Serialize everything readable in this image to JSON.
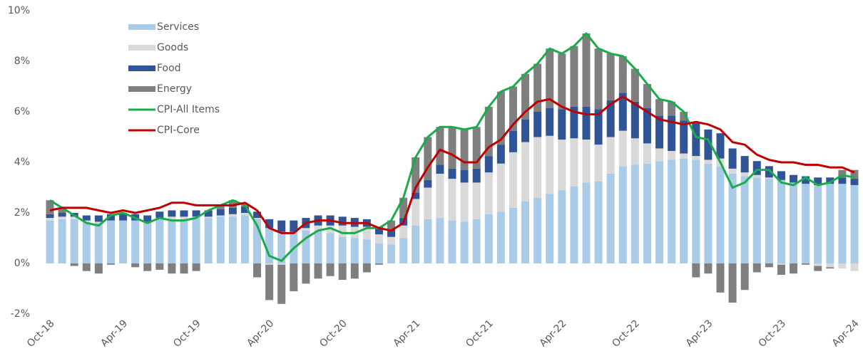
{
  "chart_data": {
    "type": "bar",
    "categories": [
      "Oct-18",
      null,
      null,
      null,
      null,
      null,
      "Apr-19",
      null,
      null,
      null,
      null,
      null,
      "Oct-19",
      null,
      null,
      null,
      null,
      null,
      "Apr-20",
      null,
      null,
      null,
      null,
      null,
      "Oct-20",
      null,
      null,
      null,
      null,
      null,
      "Apr-21",
      null,
      null,
      null,
      null,
      null,
      "Oct-21",
      null,
      null,
      null,
      null,
      null,
      "Apr-22",
      null,
      null,
      null,
      null,
      null,
      "Oct-22",
      null,
      null,
      null,
      null,
      null,
      "Apr-23",
      null,
      null,
      null,
      null,
      null,
      "Oct-23",
      null,
      null,
      null,
      null,
      null,
      "Apr-24"
    ],
    "series": [
      {
        "name": "Services",
        "type": "bar",
        "color": "#a9cbe8",
        "values": [
          1.7,
          1.75,
          1.75,
          1.65,
          1.6,
          1.7,
          1.7,
          1.7,
          1.65,
          1.75,
          1.75,
          1.75,
          1.8,
          1.8,
          1.85,
          1.85,
          1.9,
          1.75,
          1.4,
          1.25,
          1.25,
          1.3,
          1.3,
          1.2,
          1.05,
          1.0,
          0.95,
          0.8,
          0.75,
          1.0,
          1.5,
          1.75,
          1.8,
          1.7,
          1.65,
          1.75,
          1.95,
          2.05,
          2.2,
          2.45,
          2.6,
          2.75,
          2.9,
          3.05,
          3.2,
          3.25,
          3.55,
          3.85,
          3.9,
          3.95,
          4.05,
          4.1,
          4.15,
          4.1,
          3.95,
          3.85,
          3.55,
          3.45,
          3.4,
          3.35,
          3.3,
          3.2,
          3.15,
          3.1,
          3.15,
          3.15,
          3.1
        ]
      },
      {
        "name": "Goods",
        "type": "bar",
        "color": "#d9d9d9",
        "values": [
          0.1,
          0.1,
          0.1,
          0.05,
          0.05,
          0.0,
          0.0,
          0.0,
          0.0,
          0.05,
          0.1,
          0.1,
          0.05,
          0.05,
          0.05,
          0.1,
          0.1,
          0.05,
          -0.05,
          -0.05,
          0.0,
          0.1,
          0.2,
          0.3,
          0.45,
          0.45,
          0.5,
          0.35,
          0.3,
          0.5,
          1.05,
          1.25,
          1.75,
          1.65,
          1.55,
          1.45,
          1.65,
          1.9,
          2.2,
          2.35,
          2.4,
          2.3,
          2.0,
          1.9,
          1.7,
          1.45,
          1.45,
          1.4,
          1.05,
          0.8,
          0.5,
          0.35,
          0.2,
          0.15,
          0.15,
          0.3,
          0.2,
          0.15,
          0.1,
          0.05,
          -0.05,
          0.0,
          0.0,
          -0.1,
          -0.15,
          -0.2,
          -0.3
        ]
      },
      {
        "name": "Food",
        "type": "bar",
        "color": "#2f5597",
        "values": [
          0.15,
          0.15,
          0.15,
          0.2,
          0.25,
          0.25,
          0.25,
          0.25,
          0.25,
          0.25,
          0.25,
          0.25,
          0.25,
          0.25,
          0.25,
          0.25,
          0.25,
          0.25,
          0.35,
          0.45,
          0.45,
          0.4,
          0.4,
          0.4,
          0.35,
          0.35,
          0.3,
          0.3,
          0.3,
          0.3,
          0.25,
          0.3,
          0.35,
          0.4,
          0.5,
          0.55,
          0.65,
          0.75,
          0.85,
          0.9,
          1.0,
          1.1,
          1.2,
          1.25,
          1.3,
          1.4,
          1.45,
          1.5,
          1.45,
          1.4,
          1.3,
          1.4,
          1.3,
          1.3,
          1.2,
          1.0,
          0.8,
          0.65,
          0.55,
          0.45,
          0.35,
          0.3,
          0.3,
          0.3,
          0.25,
          0.25,
          0.25
        ]
      },
      {
        "name": "Energy",
        "type": "bar",
        "color": "#7f7f7f",
        "values": [
          0.55,
          0.2,
          -0.1,
          -0.3,
          -0.4,
          -0.05,
          0.05,
          -0.15,
          -0.3,
          -0.25,
          -0.4,
          -0.4,
          -0.3,
          0.0,
          0.15,
          0.3,
          0.05,
          -0.55,
          -1.4,
          -1.55,
          -1.1,
          -0.8,
          -0.6,
          -0.5,
          -0.65,
          -0.6,
          -0.35,
          -0.05,
          0.35,
          0.8,
          1.4,
          1.7,
          1.5,
          1.65,
          1.6,
          1.65,
          1.95,
          2.1,
          1.75,
          1.8,
          1.9,
          2.35,
          2.2,
          2.4,
          2.9,
          2.4,
          1.85,
          1.45,
          1.3,
          0.95,
          0.65,
          0.55,
          0.35,
          -0.55,
          -0.4,
          -1.15,
          -1.55,
          -1.05,
          -0.35,
          -0.15,
          -0.4,
          -0.4,
          -0.05,
          -0.2,
          -0.05,
          0.3,
          0.35
        ]
      },
      {
        "name": "CPI-All Items",
        "type": "line",
        "color": "#1aab4b",
        "values": [
          2.5,
          2.2,
          1.9,
          1.6,
          1.5,
          1.9,
          2.0,
          1.8,
          1.6,
          1.8,
          1.7,
          1.7,
          1.8,
          2.1,
          2.3,
          2.5,
          2.3,
          1.5,
          0.3,
          0.1,
          0.6,
          1.0,
          1.3,
          1.4,
          1.2,
          1.2,
          1.4,
          1.4,
          1.7,
          2.6,
          4.2,
          5.0,
          5.4,
          5.4,
          5.3,
          5.4,
          6.2,
          6.8,
          7.0,
          7.5,
          7.9,
          8.5,
          8.3,
          8.6,
          9.1,
          8.5,
          8.3,
          8.2,
          7.7,
          7.1,
          6.5,
          6.4,
          6.0,
          5.0,
          4.9,
          4.0,
          3.0,
          3.2,
          3.7,
          3.7,
          3.2,
          3.1,
          3.4,
          3.1,
          3.2,
          3.5,
          3.4
        ]
      },
      {
        "name": "CPI-Core",
        "type": "line",
        "color": "#c00000",
        "values": [
          2.1,
          2.2,
          2.2,
          2.2,
          2.1,
          2.0,
          2.1,
          2.0,
          2.1,
          2.2,
          2.4,
          2.4,
          2.3,
          2.3,
          2.3,
          2.3,
          2.4,
          2.1,
          1.4,
          1.2,
          1.2,
          1.6,
          1.7,
          1.7,
          1.6,
          1.6,
          1.6,
          1.4,
          1.3,
          1.6,
          3.0,
          3.8,
          4.5,
          4.3,
          4.0,
          4.0,
          4.6,
          4.9,
          5.5,
          6.0,
          6.4,
          6.5,
          6.2,
          6.0,
          5.9,
          5.9,
          6.3,
          6.6,
          6.3,
          6.0,
          5.7,
          5.6,
          5.5,
          5.6,
          5.5,
          5.3,
          4.8,
          4.7,
          4.3,
          4.1,
          4.0,
          4.0,
          3.9,
          3.9,
          3.8,
          3.8,
          3.6
        ]
      }
    ],
    "ylim": [
      -2,
      10
    ],
    "yticks": [
      {
        "value": -2,
        "label": "-2%"
      },
      {
        "value": 0,
        "label": "0%"
      },
      {
        "value": 2,
        "label": "2%"
      },
      {
        "value": 4,
        "label": "4%"
      },
      {
        "value": 6,
        "label": "6%"
      },
      {
        "value": 8,
        "label": "8%"
      },
      {
        "value": 10,
        "label": "10%"
      }
    ],
    "grid": false,
    "legend": "upper left"
  }
}
